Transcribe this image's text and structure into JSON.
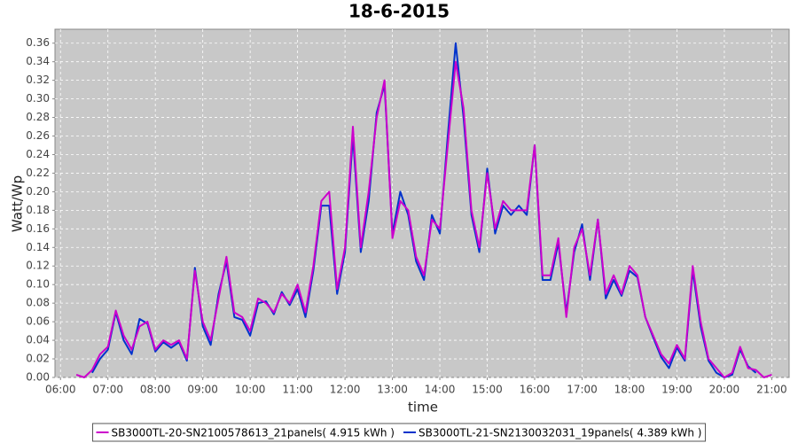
{
  "chart_data": {
    "type": "line",
    "title": "18-6-2015",
    "x_label": "time",
    "y_label": "Watt/Wp",
    "x": [
      "06:20",
      "06:30",
      "06:40",
      "06:50",
      "07:00",
      "07:10",
      "07:20",
      "07:30",
      "07:40",
      "07:50",
      "08:00",
      "08:10",
      "08:20",
      "08:30",
      "08:40",
      "08:50",
      "09:00",
      "09:10",
      "09:20",
      "09:30",
      "09:40",
      "09:50",
      "10:00",
      "10:10",
      "10:20",
      "10:30",
      "10:40",
      "10:50",
      "11:00",
      "11:10",
      "11:20",
      "11:30",
      "11:40",
      "11:50",
      "12:00",
      "12:10",
      "12:20",
      "12:30",
      "12:40",
      "12:50",
      "13:00",
      "13:10",
      "13:20",
      "13:30",
      "13:40",
      "13:50",
      "14:00",
      "14:10",
      "14:20",
      "14:30",
      "14:40",
      "14:50",
      "15:00",
      "15:10",
      "15:20",
      "15:30",
      "15:40",
      "15:50",
      "16:00",
      "16:10",
      "16:20",
      "16:30",
      "16:40",
      "16:50",
      "17:00",
      "17:10",
      "17:20",
      "17:30",
      "17:40",
      "17:50",
      "18:00",
      "18:10",
      "18:20",
      "18:30",
      "18:40",
      "18:50",
      "19:00",
      "19:10",
      "19:20",
      "19:30",
      "19:40",
      "19:50",
      "20:00",
      "20:10",
      "20:20",
      "20:30",
      "20:40",
      "20:50",
      "21:00"
    ],
    "series": [
      {
        "name": "SB3000TL-21-SN2130032031_19panels( 4.389 kWh )",
        "color": "#0033cc",
        "values": [
          null,
          null,
          0.005,
          0.02,
          0.03,
          0.07,
          0.04,
          0.025,
          0.063,
          0.058,
          0.028,
          0.038,
          0.032,
          0.038,
          0.018,
          0.118,
          0.055,
          0.035,
          0.09,
          0.125,
          0.065,
          0.062,
          0.045,
          0.08,
          0.082,
          0.068,
          0.092,
          0.078,
          0.095,
          0.065,
          0.115,
          0.185,
          0.185,
          0.09,
          0.135,
          0.26,
          0.135,
          0.19,
          0.285,
          0.315,
          0.155,
          0.2,
          0.175,
          0.125,
          0.105,
          0.175,
          0.155,
          0.26,
          0.36,
          0.28,
          0.175,
          0.135,
          0.225,
          0.155,
          0.185,
          0.175,
          0.185,
          0.175,
          0.25,
          0.105,
          0.105,
          0.145,
          0.07,
          0.135,
          0.165,
          0.105,
          0.17,
          0.085,
          0.105,
          0.088,
          0.115,
          0.108,
          0.065,
          0.043,
          0.022,
          0.01,
          0.032,
          0.018,
          0.115,
          0.055,
          0.018,
          0.005,
          0,
          0.003,
          0.03,
          0.012,
          0.005,
          null,
          null
        ]
      },
      {
        "name": "SB3000TL-20-SN2100578613_21panels( 4.915 kWh )",
        "color": "#cc00cc",
        "values": [
          0.003,
          0,
          0.008,
          0.025,
          0.033,
          0.072,
          0.045,
          0.03,
          0.055,
          0.06,
          0.03,
          0.04,
          0.035,
          0.04,
          0.02,
          0.115,
          0.06,
          0.04,
          0.085,
          0.13,
          0.07,
          0.065,
          0.05,
          0.085,
          0.08,
          0.07,
          0.09,
          0.08,
          0.1,
          0.07,
          0.12,
          0.19,
          0.2,
          0.095,
          0.14,
          0.27,
          0.14,
          0.2,
          0.28,
          0.32,
          0.15,
          0.19,
          0.18,
          0.13,
          0.11,
          0.17,
          0.16,
          0.25,
          0.34,
          0.29,
          0.18,
          0.14,
          0.22,
          0.16,
          0.19,
          0.18,
          0.18,
          0.18,
          0.25,
          0.11,
          0.11,
          0.15,
          0.065,
          0.14,
          0.16,
          0.11,
          0.17,
          0.09,
          0.11,
          0.09,
          0.12,
          0.11,
          0.065,
          0.045,
          0.025,
          0.015,
          0.035,
          0.02,
          0.12,
          0.06,
          0.02,
          0.01,
          0,
          0.005,
          0.033,
          0.01,
          0.008,
          0,
          0.003
        ]
      }
    ],
    "legend_order": [
      1,
      0
    ],
    "xlim": [
      "05:53",
      "21:22"
    ],
    "xticks": [
      "06:00",
      "07:00",
      "08:00",
      "09:00",
      "10:00",
      "11:00",
      "12:00",
      "13:00",
      "14:00",
      "15:00",
      "16:00",
      "17:00",
      "18:00",
      "19:00",
      "20:00",
      "21:00"
    ],
    "ylim": [
      0,
      0.375
    ],
    "yticks": [
      {
        "value": 0,
        "label": "0.00"
      },
      {
        "value": 0.02,
        "label": "0.02"
      },
      {
        "value": 0.04,
        "label": "0.04"
      },
      {
        "value": 0.06,
        "label": "0.06"
      },
      {
        "value": 0.08,
        "label": "0.08"
      },
      {
        "value": 0.1,
        "label": "0.10"
      },
      {
        "value": 0.12,
        "label": "0.12"
      },
      {
        "value": 0.14,
        "label": "0.14"
      },
      {
        "value": 0.16,
        "label": "0.16"
      },
      {
        "value": 0.18,
        "label": "0.18"
      },
      {
        "value": 0.2,
        "label": "0.20"
      },
      {
        "value": 0.22,
        "label": "0.22"
      },
      {
        "value": 0.24,
        "label": "0.24"
      },
      {
        "value": 0.26,
        "label": "0.26"
      },
      {
        "value": 0.28,
        "label": "0.28"
      },
      {
        "value": 0.3,
        "label": "0.30"
      },
      {
        "value": 0.32,
        "label": "0.32"
      },
      {
        "value": 0.34,
        "label": "0.34"
      },
      {
        "value": 0.36,
        "label": "0.36"
      }
    ],
    "grid": true,
    "legend": "bottom"
  }
}
